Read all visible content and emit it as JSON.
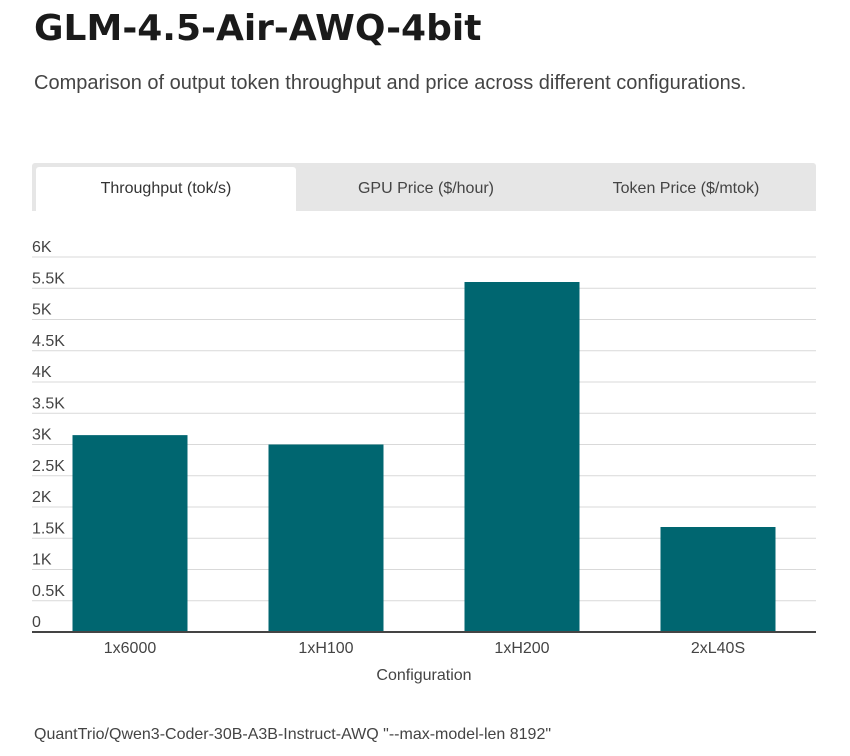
{
  "header": {
    "title": "GLM-4.5-Air-AWQ-4bit",
    "subtitle": "Comparison of output token throughput and price across different configurations."
  },
  "tabs": [
    {
      "label": "Throughput (tok/s)",
      "active": true
    },
    {
      "label": "GPU Price ($/hour)",
      "active": false
    },
    {
      "label": "Token Price ($/mtok)",
      "active": false
    }
  ],
  "chart_data": {
    "type": "bar",
    "title": "",
    "xlabel": "Configuration",
    "ylabel": "",
    "categories": [
      "1x6000",
      "1xH100",
      "1xH200",
      "2xL40S"
    ],
    "values": [
      3150,
      3000,
      5600,
      1680
    ],
    "ylim": [
      0,
      6000
    ],
    "yticks": [
      0,
      500,
      1000,
      1500,
      2000,
      2500,
      3000,
      3500,
      4000,
      4500,
      5000,
      5500,
      6000
    ],
    "ytick_labels": [
      "0",
      "0.5K",
      "1K",
      "1.5K",
      "2K",
      "2.5K",
      "3K",
      "3.5K",
      "4K",
      "4.5K",
      "5K",
      "5.5K",
      "6K"
    ],
    "grid": true,
    "legend": "none",
    "bar_color": "#006670",
    "grid_color": "#d9d9d9",
    "axis_color": "#444444"
  },
  "footnote": "QuantTrio/Qwen3-Coder-30B-A3B-Instruct-AWQ \"--max-model-len 8192\""
}
